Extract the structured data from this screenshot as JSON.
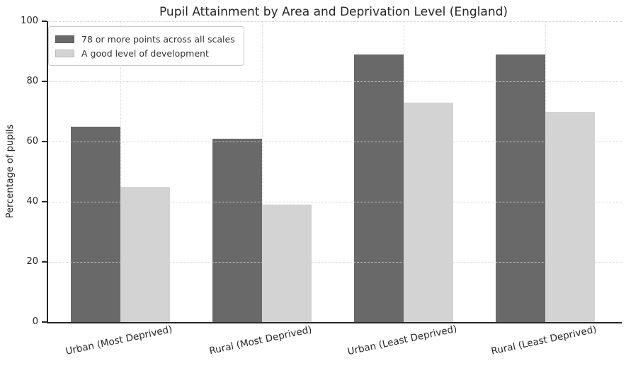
{
  "chart_data": {
    "type": "bar",
    "title": "Pupil Attainment by Area and Deprivation Level (England)",
    "xlabel": "",
    "ylabel": "Percentage of pupils",
    "ylim": [
      0,
      100
    ],
    "yticks": [
      0,
      20,
      40,
      60,
      80,
      100
    ],
    "grid": true,
    "grid_style": "dashed",
    "legend_position": "upper-left",
    "categories": [
      "Urban (Most Deprived)",
      "Rural (Most Deprived)",
      "Urban (Least Deprived)",
      "Rural (Least Deprived)"
    ],
    "series": [
      {
        "name": "78 or more points across all scales",
        "color": "#696969",
        "values": [
          65,
          61,
          89,
          89
        ]
      },
      {
        "name": "A good level of development",
        "color": "#d3d3d3",
        "values": [
          45,
          39,
          73,
          70
        ]
      }
    ]
  },
  "colors": {
    "background": "#ffffff",
    "spine": "#262626",
    "grid": "#d0d0d0",
    "text": "#262626",
    "legend_border": "#cccccc"
  }
}
